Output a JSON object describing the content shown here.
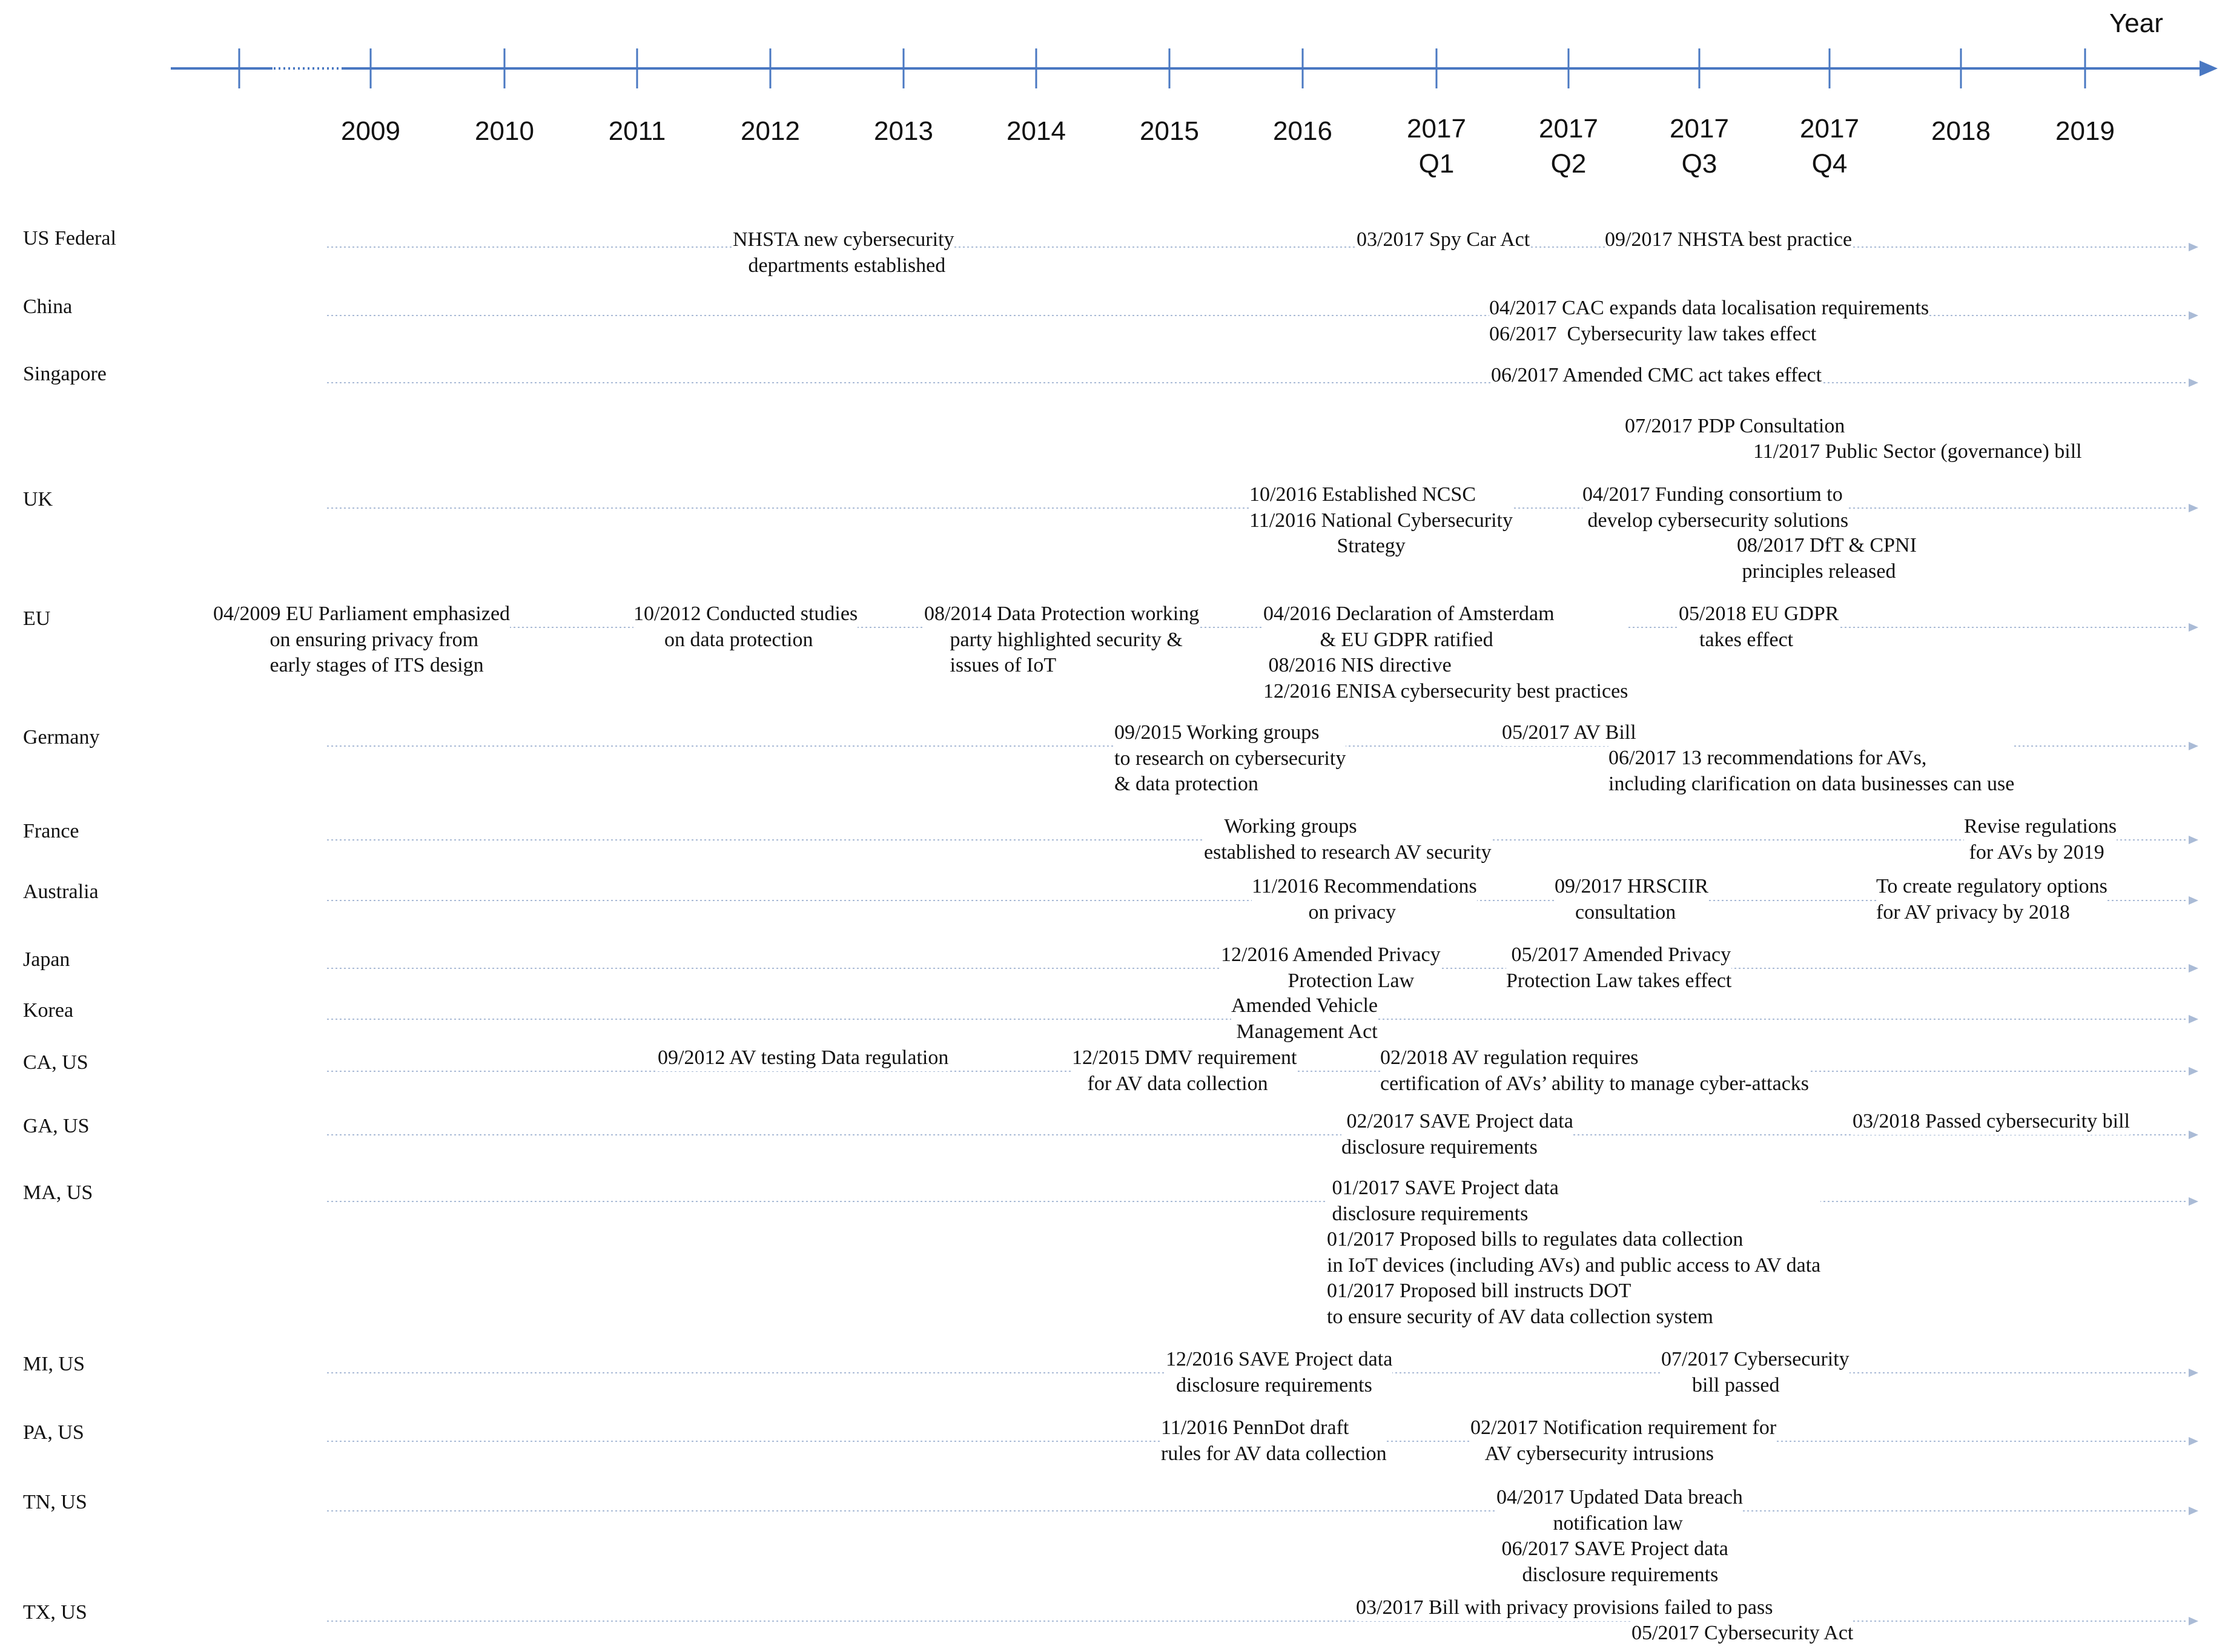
{
  "colors": {
    "axis": "#4a78c2",
    "row_line": "#aabbd6",
    "text": "#111111"
  },
  "axis": {
    "year_label": "Year",
    "ticks": [
      {
        "label": "2009"
      },
      {
        "label": "2010"
      },
      {
        "label": "2011"
      },
      {
        "label": "2012"
      },
      {
        "label": "2013"
      },
      {
        "label": "2014"
      },
      {
        "label": "2015"
      },
      {
        "label": "2016"
      },
      {
        "label": "2017\nQ1"
      },
      {
        "label": "2017\nQ2"
      },
      {
        "label": "2017\nQ3"
      },
      {
        "label": "2017\nQ4"
      },
      {
        "label": "2018"
      },
      {
        "label": "2019"
      }
    ]
  },
  "rows": [
    {
      "label": "US Federal",
      "events": [
        {
          "text": "NHSTA new cybersecurity\n   departments established"
        },
        {
          "text": "03/2017 Spy Car Act"
        },
        {
          "text": "09/2017 NHSTA best practice"
        }
      ]
    },
    {
      "label": "China",
      "events": [
        {
          "text": "04/2017 CAC expands data localisation requirements\n06/2017  Cybersecurity law takes effect"
        }
      ]
    },
    {
      "label": "Singapore",
      "events": [
        {
          "text": "06/2017 Amended CMC act takes effect"
        },
        {
          "text": "07/2017 PDP Consultation"
        },
        {
          "text": "11/2017 Public Sector (governance) bill"
        }
      ]
    },
    {
      "label": "UK",
      "events": [
        {
          "text": "10/2016 Established NCSC\n11/2016 National Cybersecurity\n                 Strategy"
        },
        {
          "text": "04/2017 Funding consortium to\n develop cybersecurity solutions"
        },
        {
          "text": "08/2017 DfT & CPNI\n principles released"
        }
      ]
    },
    {
      "label": "EU",
      "events": [
        {
          "text": "04/2009 EU Parliament emphasized\n           on ensuring privacy from\n           early stages of ITS design"
        },
        {
          "text": "10/2012 Conducted studies\n      on data protection"
        },
        {
          "text": "08/2014 Data Protection working\n     party highlighted security &\n     issues of IoT"
        },
        {
          "text": "04/2016 Declaration of Amsterdam\n           & EU GDPR ratified\n 08/2016 NIS directive\n12/2016 ENISA cybersecurity best practices"
        },
        {
          "text": "05/2018 EU GDPR\n    takes effect"
        }
      ]
    },
    {
      "label": "Germany",
      "events": [
        {
          "text": "09/2015 Working groups\nto research on cybersecurity\n& data protection"
        },
        {
          "text": "05/2017 AV Bill"
        },
        {
          "text": "06/2017 13 recommendations for AVs,\nincluding clarification on data businesses can use"
        }
      ]
    },
    {
      "label": "France",
      "events": [
        {
          "text": "    Working groups\nestablished to research AV security"
        },
        {
          "text": "Revise regulations\n for AVs by 2019"
        }
      ]
    },
    {
      "label": "Australia",
      "events": [
        {
          "text": "11/2016 Recommendations\n           on privacy"
        },
        {
          "text": "09/2017 HRSCIIR\n    consultation"
        },
        {
          "text": "To create regulatory options\nfor AV privacy by 2018"
        }
      ]
    },
    {
      "label": "Japan",
      "events": [
        {
          "text": "12/2016 Amended Privacy\n             Protection Law"
        },
        {
          "text": " 05/2017 Amended Privacy\nProtection Law takes effect"
        }
      ]
    },
    {
      "label": "Korea",
      "events": [
        {
          "text": "Amended Vehicle\n Management Act"
        }
      ]
    },
    {
      "label": "CA, US",
      "events": [
        {
          "text": "09/2012 AV testing Data regulation"
        },
        {
          "text": "12/2015 DMV requirement\n   for AV data collection"
        },
        {
          "text": "02/2018 AV regulation requires\ncertification of AVs’ ability to manage cyber-attacks"
        }
      ]
    },
    {
      "label": "GA, US",
      "events": [
        {
          "text": " 02/2017 SAVE Project data\ndisclosure requirements"
        },
        {
          "text": "03/2018 Passed cybersecurity bill"
        }
      ]
    },
    {
      "label": "MA, US",
      "events": [
        {
          "text": " 01/2017 SAVE Project data\n disclosure requirements\n01/2017 Proposed bills to regulates data collection\nin IoT devices (including AVs) and public access to AV data\n01/2017 Proposed bill instructs DOT\nto ensure security of AV data collection system"
        }
      ]
    },
    {
      "label": "MI, US",
      "events": [
        {
          "text": "12/2016 SAVE Project data\n  disclosure requirements"
        },
        {
          "text": "07/2017 Cybersecurity\n      bill passed"
        }
      ]
    },
    {
      "label": "PA, US",
      "events": [
        {
          "text": "11/2016 PennDot draft\nrules for AV data collection"
        },
        {
          "text": "02/2017 Notification requirement for\n   AV cybersecurity intrusions"
        }
      ]
    },
    {
      "label": "TN, US",
      "events": [
        {
          "text": "04/2017 Updated Data breach\n           notification law\n 06/2017 SAVE Project data\n     disclosure requirements"
        }
      ]
    },
    {
      "label": "TX, US",
      "events": [
        {
          "text": "03/2017 Bill with privacy provisions failed to pass"
        },
        {
          "text": "05/2017 Cybersecurity Act"
        }
      ]
    }
  ]
}
